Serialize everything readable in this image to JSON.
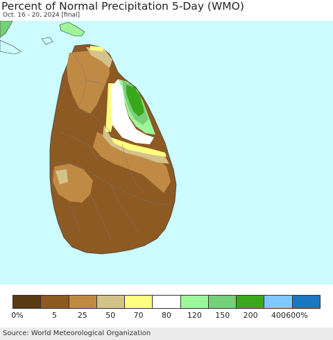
{
  "header": {
    "title": "Percent of Normal Precipitation 5-Day (WMO)",
    "subtitle": "Oct. 16 - 20, 2024 [final]"
  },
  "legend": {
    "colors": [
      "#5a3a13",
      "#8d5a23",
      "#c08a45",
      "#d3c28a",
      "#ffff80",
      "#ffffff",
      "#9ff59a",
      "#78cf7a",
      "#3aa81a",
      "#80c8ff",
      "#1a78c0"
    ],
    "labels": [
      "0%",
      "5",
      "25",
      "50",
      "70",
      "80",
      "120",
      "150",
      "200",
      "400",
      "600%"
    ]
  },
  "map_colors": {
    "water": "#ccfcff",
    "dark_brown": "#8d5a23",
    "medium_brown": "#c08a45",
    "tan": "#d3c28a",
    "yellow": "#ffff80",
    "white": "#ffffff",
    "light_green": "#9ff59a",
    "mid_green": "#78cf7a",
    "dark_green": "#3aa81a"
  },
  "footer": {
    "source": "Source: World Meteorological Organization"
  }
}
